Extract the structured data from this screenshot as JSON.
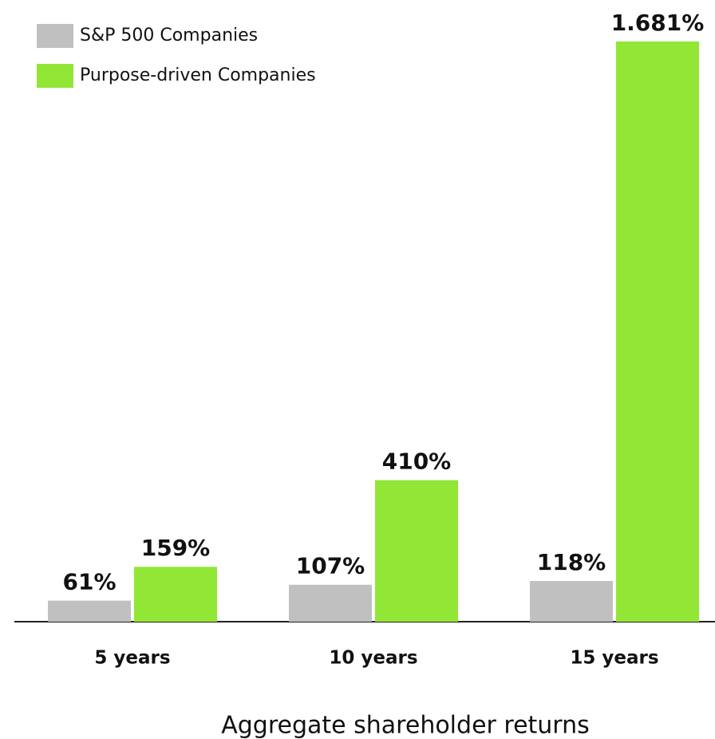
{
  "chart_data": {
    "type": "bar",
    "categories": [
      "5 years",
      "10 years",
      "15 years"
    ],
    "x_label": "Aggregate shareholder returns",
    "series": [
      {
        "name": "S&P 500 Companies",
        "color": "#c0c0c0",
        "values": [
          61,
          107,
          118
        ],
        "value_labels": [
          "61%",
          "107%",
          "118%"
        ]
      },
      {
        "name": "Purpose-driven Companies",
        "color": "#92e636",
        "values": [
          159,
          410,
          1681
        ],
        "value_labels": [
          "159%",
          "410%",
          "1.681%"
        ]
      }
    ],
    "legend": "upper left"
  }
}
